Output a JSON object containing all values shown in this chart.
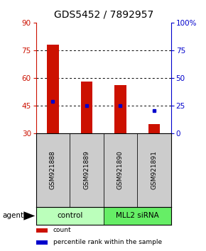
{
  "title": "GDS5452 / 7892957",
  "samples": [
    "GSM921888",
    "GSM921889",
    "GSM921890",
    "GSM921891"
  ],
  "bar_bottoms": [
    30,
    30,
    30,
    30
  ],
  "bar_tops": [
    78,
    58,
    56,
    35
  ],
  "blue_values": [
    47,
    45,
    45,
    42
  ],
  "ylim": [
    30,
    90
  ],
  "yticks_left": [
    30,
    45,
    60,
    75,
    90
  ],
  "yticks_right": [
    0,
    25,
    50,
    75,
    100
  ],
  "ytick_labels_right": [
    "0",
    "25",
    "50",
    "75",
    "100%"
  ],
  "hgrid_lines": [
    45,
    60,
    75
  ],
  "bar_color": "#cc1100",
  "blue_color": "#0000cc",
  "group_labels": [
    "control",
    "MLL2 siRNA"
  ],
  "group_colors": [
    "#bbffbb",
    "#66ee66"
  ],
  "label_area_color": "#cccccc",
  "agent_label": "agent",
  "legend_items": [
    {
      "label": "count",
      "color": "#cc1100"
    },
    {
      "label": "percentile rank within the sample",
      "color": "#0000cc"
    }
  ],
  "title_fontsize": 10,
  "tick_fontsize": 7.5,
  "bar_width": 0.35
}
